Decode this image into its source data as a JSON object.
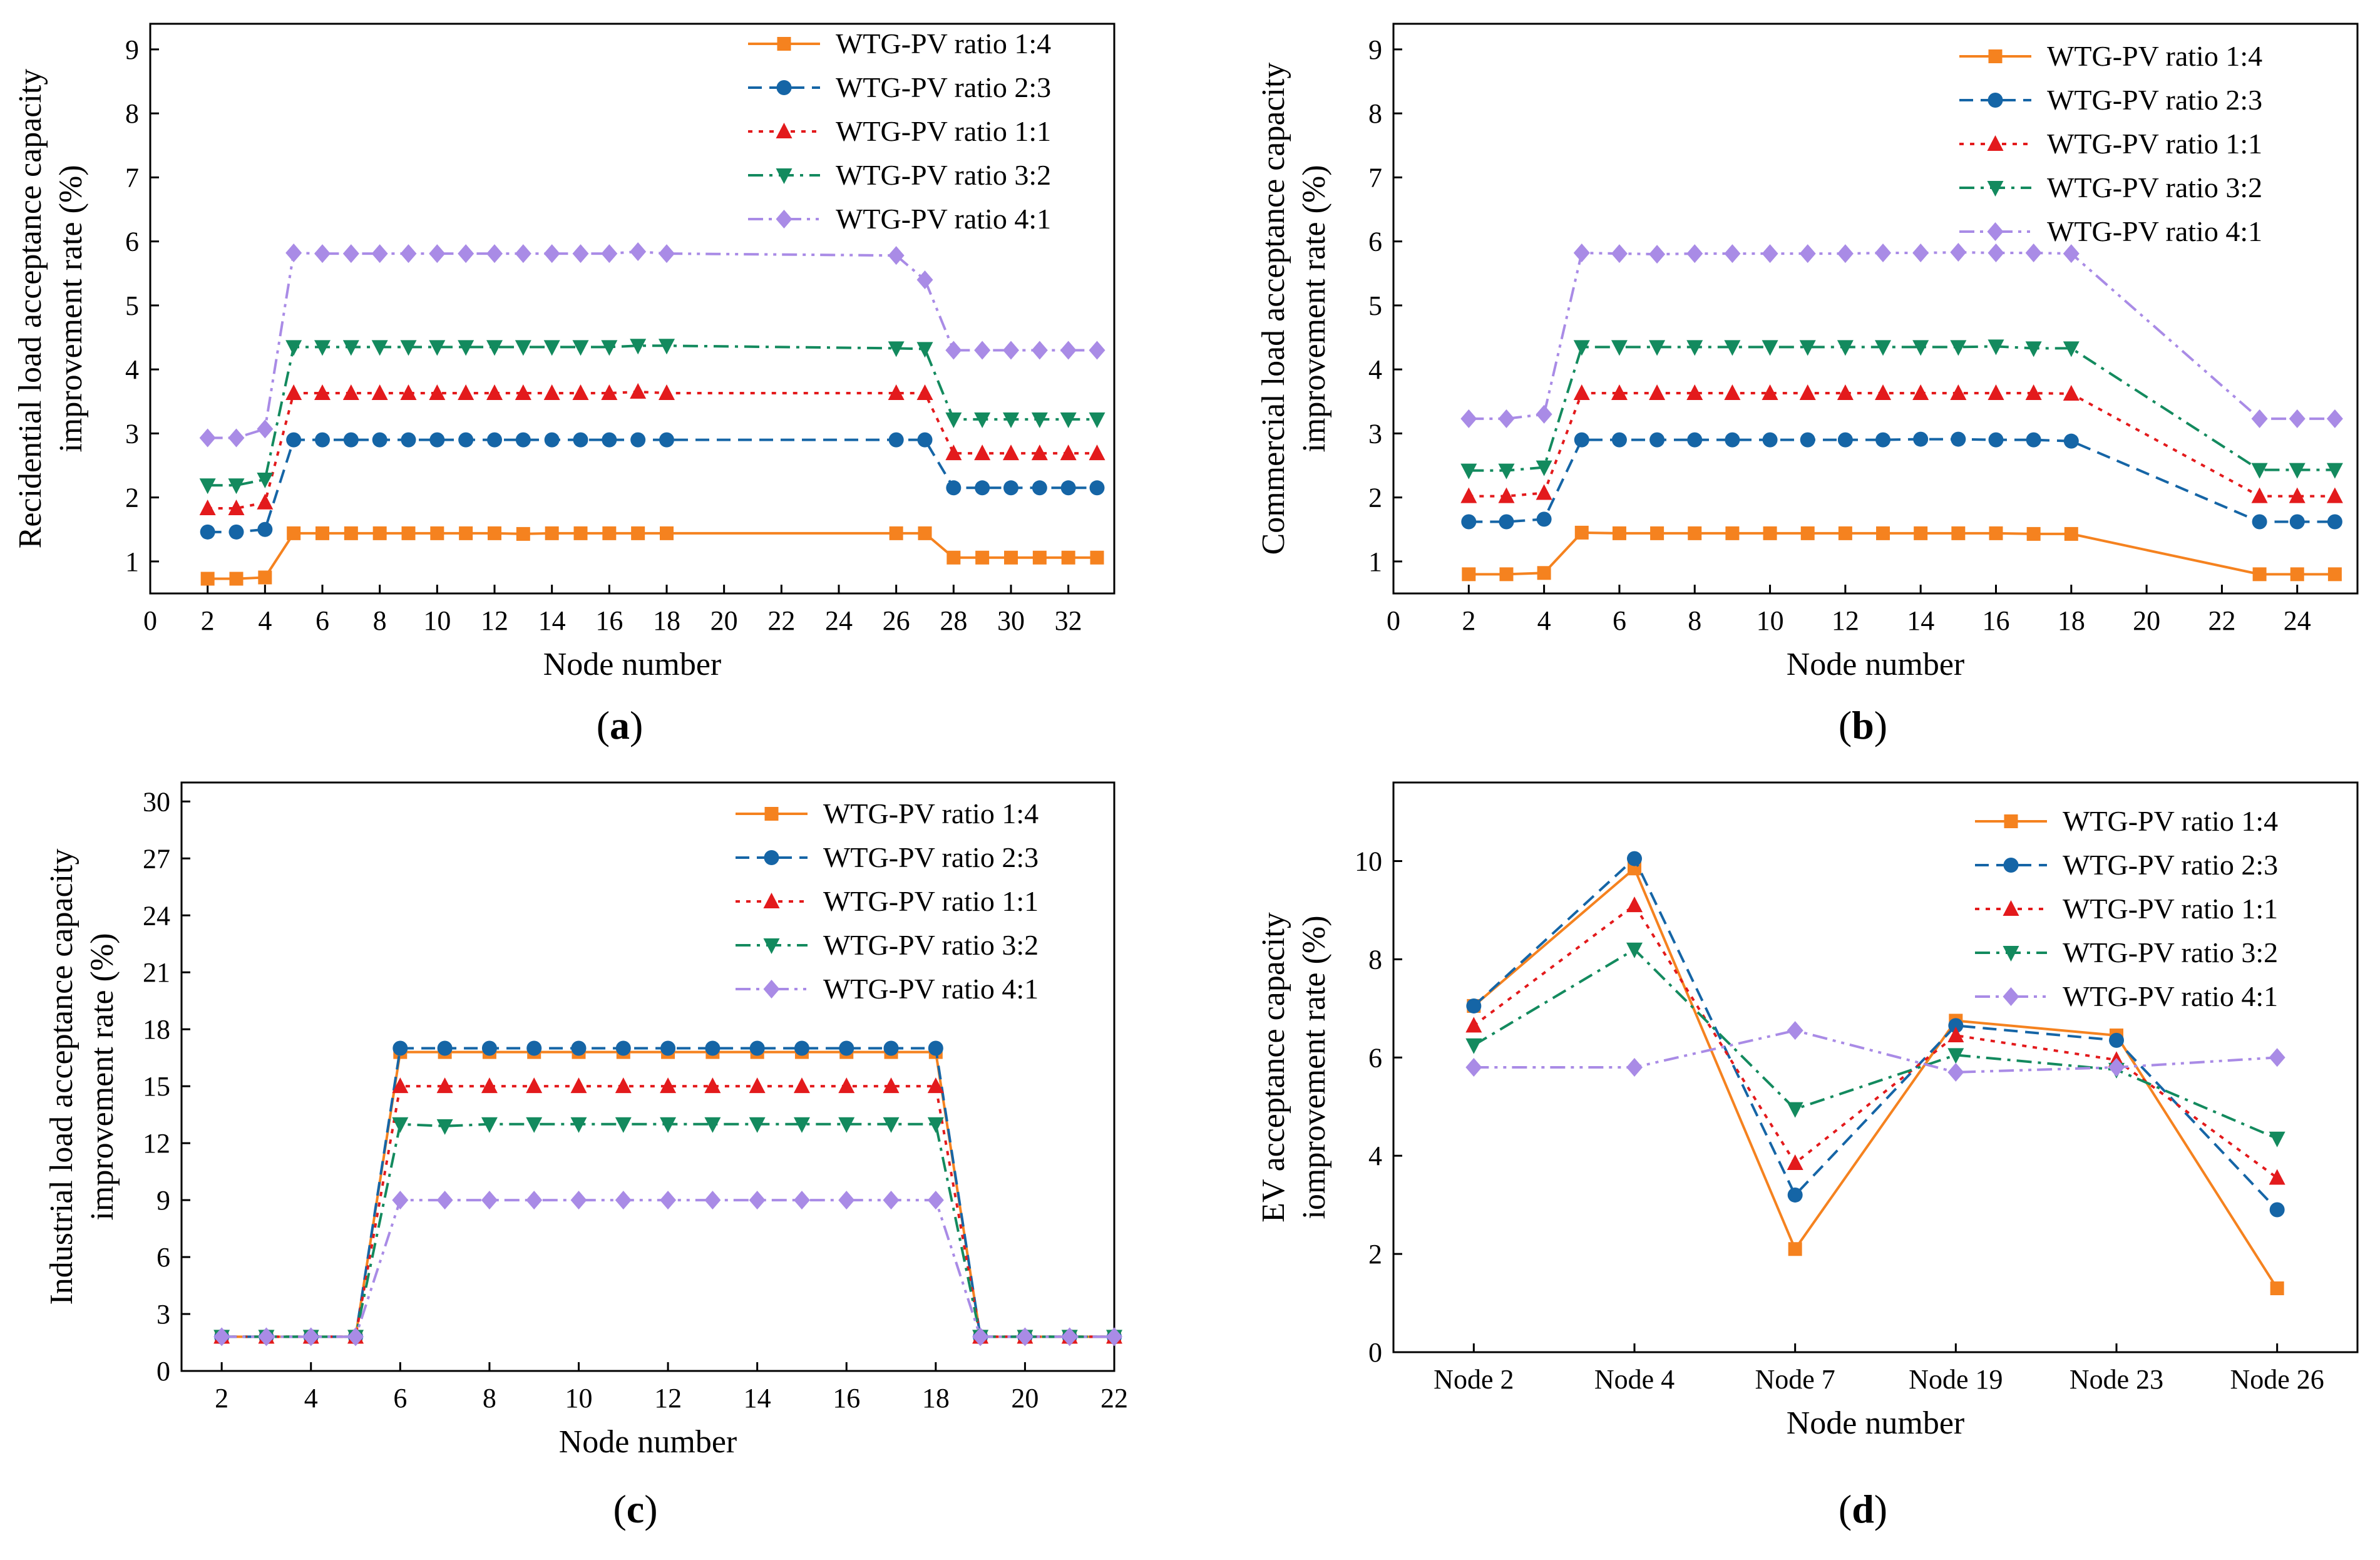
{
  "legend_labels": [
    "WTG-PV ratio 1:4",
    "WTG-PV ratio 2:3",
    "WTG-PV ratio 1:1",
    "WTG-PV ratio 3:2",
    "WTG-PV ratio 4:1"
  ],
  "series_styles": [
    {
      "color": "#f5821f",
      "marker": "square",
      "dash": "solid"
    },
    {
      "color": "#1565a6",
      "marker": "circle",
      "dash": "dash"
    },
    {
      "color": "#e31a1c",
      "marker": "triangle-up",
      "dash": "dot"
    },
    {
      "color": "#138a5e",
      "marker": "triangle-down",
      "dash": "dashdot"
    },
    {
      "color": "#a98be6",
      "marker": "diamond",
      "dash": "dashdotdot"
    }
  ],
  "chart_data": [
    {
      "panel": "(a)",
      "panel_letter": "a",
      "type": "line",
      "xlabel": "Node number",
      "ylabel_lines": [
        "Recidential load acceptance capacity",
        "improvement rate (%)"
      ],
      "xlim": [
        0,
        33.6
      ],
      "ylim": [
        0.5,
        9.4
      ],
      "xticks": [
        0,
        2,
        4,
        6,
        8,
        10,
        12,
        14,
        16,
        18,
        20,
        22,
        24,
        26,
        28,
        30,
        32
      ],
      "yticks": [
        1,
        2,
        3,
        4,
        5,
        6,
        7,
        8,
        9
      ],
      "x": [
        2,
        3,
        4,
        5,
        6,
        7,
        8,
        9,
        10,
        11,
        12,
        13,
        14,
        15,
        16,
        17,
        18,
        26,
        27,
        28,
        29,
        30,
        31,
        32,
        33
      ],
      "series": [
        {
          "name": "WTG-PV ratio 1:4",
          "values": [
            0.73,
            0.73,
            0.75,
            1.44,
            1.44,
            1.44,
            1.44,
            1.44,
            1.44,
            1.44,
            1.44,
            1.43,
            1.44,
            1.44,
            1.44,
            1.44,
            1.44,
            1.44,
            1.44,
            1.06,
            1.06,
            1.06,
            1.06,
            1.06,
            1.06
          ]
        },
        {
          "name": "WTG-PV ratio 2:3",
          "values": [
            1.46,
            1.46,
            1.5,
            2.9,
            2.9,
            2.9,
            2.9,
            2.9,
            2.9,
            2.9,
            2.9,
            2.9,
            2.9,
            2.9,
            2.9,
            2.9,
            2.9,
            2.9,
            2.9,
            2.15,
            2.15,
            2.15,
            2.15,
            2.15,
            2.15
          ]
        },
        {
          "name": "WTG-PV ratio 1:1",
          "values": [
            1.83,
            1.83,
            1.92,
            3.63,
            3.63,
            3.63,
            3.63,
            3.63,
            3.63,
            3.63,
            3.63,
            3.63,
            3.63,
            3.63,
            3.63,
            3.65,
            3.63,
            3.63,
            3.63,
            2.69,
            2.69,
            2.69,
            2.69,
            2.69,
            2.69
          ]
        },
        {
          "name": "WTG-PV ratio 3:2",
          "values": [
            2.19,
            2.19,
            2.28,
            4.35,
            4.35,
            4.35,
            4.35,
            4.35,
            4.35,
            4.35,
            4.35,
            4.35,
            4.35,
            4.35,
            4.35,
            4.37,
            4.37,
            4.33,
            4.32,
            3.22,
            3.22,
            3.22,
            3.22,
            3.22,
            3.22
          ]
        },
        {
          "name": "WTG-PV ratio 4:1",
          "values": [
            2.93,
            2.93,
            3.07,
            5.82,
            5.81,
            5.81,
            5.81,
            5.81,
            5.81,
            5.81,
            5.81,
            5.81,
            5.81,
            5.81,
            5.81,
            5.84,
            5.81,
            5.78,
            5.4,
            4.3,
            4.3,
            4.3,
            4.3,
            4.3,
            4.3
          ]
        }
      ]
    },
    {
      "panel": "(b)",
      "panel_letter": "b",
      "type": "line",
      "xlabel": "Node number",
      "ylabel_lines": [
        "Commercial load acceptance capacity",
        "improvement rate (%)"
      ],
      "xlim": [
        0,
        25.6
      ],
      "ylim": [
        0.5,
        9.4
      ],
      "xticks": [
        0,
        2,
        4,
        6,
        8,
        10,
        12,
        14,
        16,
        18,
        20,
        22,
        24
      ],
      "yticks": [
        1,
        2,
        3,
        4,
        5,
        6,
        7,
        8,
        9
      ],
      "x": [
        2,
        3,
        4,
        5,
        6,
        7,
        8,
        9,
        10,
        11,
        12,
        13,
        14,
        15,
        16,
        17,
        18,
        23,
        24,
        25
      ],
      "series": [
        {
          "name": "WTG-PV ratio 1:4",
          "values": [
            0.8,
            0.8,
            0.82,
            1.45,
            1.44,
            1.44,
            1.44,
            1.44,
            1.44,
            1.44,
            1.44,
            1.44,
            1.44,
            1.44,
            1.44,
            1.43,
            1.43,
            0.8,
            0.8,
            0.8
          ]
        },
        {
          "name": "WTG-PV ratio 2:3",
          "values": [
            1.62,
            1.62,
            1.66,
            2.9,
            2.9,
            2.9,
            2.9,
            2.9,
            2.9,
            2.9,
            2.9,
            2.9,
            2.91,
            2.91,
            2.9,
            2.9,
            2.88,
            1.62,
            1.62,
            1.62
          ]
        },
        {
          "name": "WTG-PV ratio 1:1",
          "values": [
            2.02,
            2.02,
            2.07,
            3.63,
            3.63,
            3.63,
            3.63,
            3.63,
            3.63,
            3.63,
            3.63,
            3.63,
            3.63,
            3.63,
            3.63,
            3.63,
            3.62,
            2.02,
            2.02,
            2.02
          ]
        },
        {
          "name": "WTG-PV ratio 3:2",
          "values": [
            2.42,
            2.42,
            2.47,
            4.35,
            4.35,
            4.35,
            4.35,
            4.35,
            4.35,
            4.35,
            4.35,
            4.35,
            4.35,
            4.35,
            4.36,
            4.33,
            4.33,
            2.43,
            2.43,
            2.43
          ]
        },
        {
          "name": "WTG-PV ratio 4:1",
          "values": [
            3.23,
            3.23,
            3.3,
            5.82,
            5.81,
            5.8,
            5.81,
            5.81,
            5.81,
            5.81,
            5.81,
            5.82,
            5.82,
            5.83,
            5.82,
            5.82,
            5.81,
            3.23,
            3.23,
            3.23
          ]
        }
      ]
    },
    {
      "panel": "(c)",
      "panel_letter": "c",
      "type": "line",
      "xlabel": "Node number",
      "ylabel_lines": [
        "Industrial load acceptance capacity",
        "improvement rate (%)"
      ],
      "xlim": [
        1.1,
        22
      ],
      "ylim": [
        0,
        31
      ],
      "xticks": [
        2,
        4,
        6,
        8,
        10,
        12,
        14,
        16,
        18,
        20,
        22
      ],
      "yticks": [
        0,
        3,
        6,
        9,
        12,
        15,
        18,
        21,
        24,
        27,
        30
      ],
      "x": [
        2,
        3,
        4,
        5,
        6,
        7,
        8,
        9,
        10,
        11,
        12,
        13,
        14,
        15,
        16,
        17,
        18,
        19,
        20,
        21,
        22
      ],
      "series": [
        {
          "name": "WTG-PV ratio 1:4",
          "values": [
            1.8,
            1.8,
            1.8,
            1.8,
            16.8,
            16.8,
            16.8,
            16.8,
            16.8,
            16.8,
            16.8,
            16.8,
            16.8,
            16.8,
            16.8,
            16.8,
            16.8,
            1.8,
            1.8,
            1.8,
            1.8
          ]
        },
        {
          "name": "WTG-PV ratio 2:3",
          "values": [
            1.8,
            1.8,
            1.8,
            1.8,
            17.0,
            17.0,
            17.0,
            17.0,
            17.0,
            17.0,
            17.0,
            17.0,
            17.0,
            17.0,
            17.0,
            17.0,
            17.0,
            1.8,
            1.8,
            1.8,
            1.8
          ]
        },
        {
          "name": "WTG-PV ratio 1:1",
          "values": [
            1.8,
            1.8,
            1.8,
            1.8,
            15.0,
            15.0,
            15.0,
            15.0,
            15.0,
            15.0,
            15.0,
            15.0,
            15.0,
            15.0,
            15.0,
            15.0,
            15.0,
            1.8,
            1.8,
            1.8,
            1.8
          ]
        },
        {
          "name": "WTG-PV ratio 3:2",
          "values": [
            1.8,
            1.8,
            1.8,
            1.8,
            13.0,
            12.9,
            13.0,
            13.0,
            13.0,
            13.0,
            13.0,
            13.0,
            13.0,
            13.0,
            13.0,
            13.0,
            13.0,
            1.8,
            1.8,
            1.8,
            1.8
          ]
        },
        {
          "name": "WTG-PV ratio 4:1",
          "values": [
            1.8,
            1.8,
            1.8,
            1.8,
            9.0,
            9.0,
            9.0,
            9.0,
            9.0,
            9.0,
            9.0,
            9.0,
            9.0,
            9.0,
            9.0,
            9.0,
            9.0,
            1.8,
            1.8,
            1.8,
            1.8
          ]
        }
      ]
    },
    {
      "panel": "(d)",
      "panel_letter": "d",
      "type": "line",
      "xlabel": "Node number",
      "ylabel_lines": [
        "EV acceptance capacity",
        "iomprovement rate (%)"
      ],
      "xlim": [
        0.5,
        6.5
      ],
      "ylim": [
        0,
        11.6
      ],
      "xticks": [
        1,
        2,
        3,
        4,
        5,
        6
      ],
      "xtick_labels": [
        "Node 2",
        "Node 4",
        "Node 7",
        "Node 19",
        "Node 23",
        "Node 26"
      ],
      "yticks": [
        0,
        2,
        4,
        6,
        8,
        10
      ],
      "x": [
        1,
        2,
        3,
        4,
        5,
        6
      ],
      "series": [
        {
          "name": "WTG-PV ratio 1:4",
          "values": [
            7.05,
            9.85,
            2.1,
            6.75,
            6.45,
            1.3
          ]
        },
        {
          "name": "WTG-PV ratio 2:3",
          "values": [
            7.05,
            10.05,
            3.2,
            6.65,
            6.35,
            2.9
          ]
        },
        {
          "name": "WTG-PV ratio 1:1",
          "values": [
            6.65,
            9.1,
            3.85,
            6.45,
            5.95,
            3.55
          ]
        },
        {
          "name": "WTG-PV ratio 3:2",
          "values": [
            6.25,
            8.2,
            4.95,
            6.05,
            5.75,
            4.35
          ]
        },
        {
          "name": "WTG-PV ratio 4:1",
          "values": [
            5.8,
            5.8,
            6.55,
            5.7,
            5.8,
            6.0
          ]
        }
      ]
    }
  ]
}
